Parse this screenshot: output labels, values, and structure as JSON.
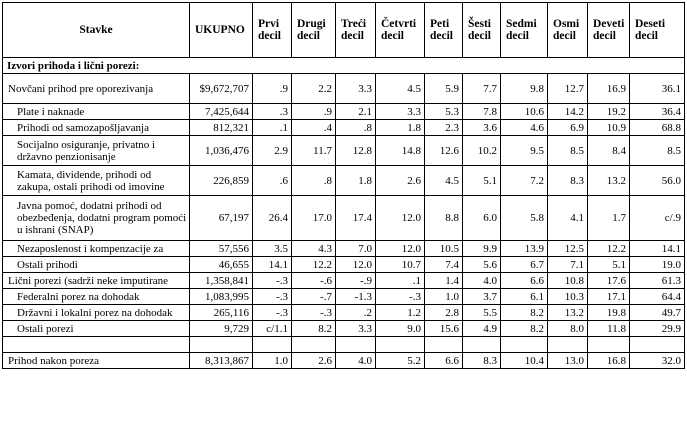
{
  "headers": [
    "Stavke",
    "UKUPNO",
    "Prvi decil",
    "Drugi decil",
    "Treći decil",
    "Četvrti decil",
    "Peti decil",
    "Šesti decil",
    "Sedmi decil",
    "Osmi decil",
    "Deveti decil",
    "Deseti decil"
  ],
  "section_title": "Izvori prihoda i lični porezi:",
  "rows": [
    {
      "label": "Novčani prihod pre oporezivanja",
      "indent": 0,
      "lines": 2,
      "cells": [
        "$9,672,707",
        ".9",
        "2.2",
        "3.3",
        "4.5",
        "5.9",
        "7.7",
        "9.8",
        "12.7",
        "16.9",
        "36.1"
      ]
    },
    {
      "label": "Plate i naknade",
      "indent": 1,
      "lines": 1,
      "cells": [
        "7,425,644",
        ".3",
        ".9",
        "2.1",
        "3.3",
        "5.3",
        "7.8",
        "10.6",
        "14.2",
        "19.2",
        "36.4"
      ]
    },
    {
      "label": "Prihodi od samozapošljavanja",
      "indent": 1,
      "lines": 1,
      "cells": [
        "812,321",
        ".1",
        ".4",
        ".8",
        "1.8",
        "2.3",
        "3.6",
        "4.6",
        "6.9",
        "10.9",
        "68.8"
      ]
    },
    {
      "label": "Socijalno osiguranje, privatno i državno penzionisanje",
      "indent": 1,
      "lines": 2,
      "cells": [
        "1,036,476",
        "2.9",
        "11.7",
        "12.8",
        "14.8",
        "12.6",
        "10.2",
        "9.5",
        "8.5",
        "8.4",
        "8.5"
      ]
    },
    {
      "label": "Kamata, dividende, prihodi od zakupa, ostali prihodi od imovine",
      "indent": 1,
      "lines": 2,
      "cells": [
        "226,859",
        ".6",
        ".8",
        "1.8",
        "2.6",
        "4.5",
        "5.1",
        "7.2",
        "8.3",
        "13.2",
        "56.0"
      ]
    },
    {
      "label": "Javna pomoć, dodatni prihodi od obezbeđenja, dodatni program pomoći u ishrani (SNAP)",
      "indent": 1,
      "lines": 3,
      "cells": [
        "67,197",
        "26.4",
        "17.0",
        "17.4",
        "12.0",
        "8.8",
        "6.0",
        "5.8",
        "4.1",
        "1.7",
        "c/.9"
      ]
    },
    {
      "label": "Nezaposlenost i kompenzacije za",
      "indent": 1,
      "lines": 1,
      "cells": [
        "57,556",
        "3.5",
        "4.3",
        "7.0",
        "12.0",
        "10.5",
        "9.9",
        "13.9",
        "12.5",
        "12.2",
        "14.1"
      ]
    },
    {
      "label": "Ostali prihodi",
      "indent": 1,
      "lines": 1,
      "cells": [
        "46,655",
        "14.1",
        "12.2",
        "12.0",
        "10.7",
        "7.4",
        "5.6",
        "6.7",
        "7.1",
        "5.1",
        "19.0"
      ]
    },
    {
      "label": "Lični porezi (sadrži neke imputirane",
      "indent": 0,
      "lines": 1,
      "cells": [
        "1,358,841",
        "-.3",
        "-.6",
        "-.9",
        ".1",
        "1.4",
        "4.0",
        "6.6",
        "10.8",
        "17.6",
        "61.3"
      ]
    },
    {
      "label": "Federalni porez na dohodak",
      "indent": 1,
      "lines": 1,
      "cells": [
        "1,083,995",
        "-.3",
        "-.7",
        "-1.3",
        "-.3",
        "1.0",
        "3.7",
        "6.1",
        "10.3",
        "17.1",
        "64.4"
      ]
    },
    {
      "label": "Državni i lokalni porez na dohodak",
      "indent": 1,
      "lines": 1,
      "cells": [
        "265,116",
        "-.3",
        "-.3",
        ".2",
        "1.2",
        "2.8",
        "5.5",
        "8.2",
        "13.2",
        "19.8",
        "49.7"
      ]
    },
    {
      "label": "Ostali porezi",
      "indent": 1,
      "lines": 1,
      "cells": [
        "9,729",
        "c/1.1",
        "8.2",
        "3.3",
        "9.0",
        "15.6",
        "4.9",
        "8.2",
        "8.0",
        "11.8",
        "29.9"
      ]
    },
    {
      "label": "",
      "indent": 0,
      "lines": 0,
      "cells": [
        "",
        "",
        "",
        "",
        "",
        "",
        "",
        "",
        "",
        "",
        ""
      ]
    },
    {
      "label": "Prihod nakon poreza",
      "indent": 0,
      "lines": 1,
      "cells": [
        "8,313,867",
        "1.0",
        "2.6",
        "4.0",
        "5.2",
        "6.6",
        "8.3",
        "10.4",
        "13.0",
        "16.8",
        "32.0"
      ]
    }
  ]
}
